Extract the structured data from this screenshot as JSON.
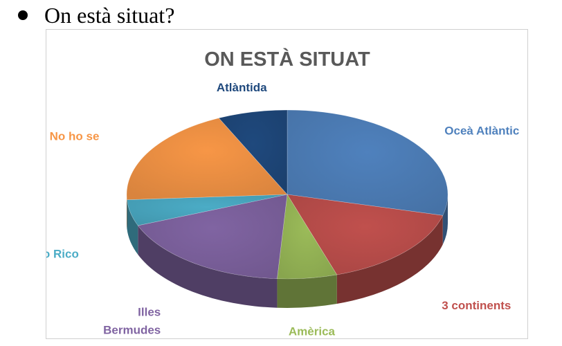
{
  "slide": {
    "bullet_text": "On està situat?"
  },
  "chart_data": {
    "type": "pie",
    "title": "ON ESTÀ SITUAT",
    "three_d": true,
    "legend": "none (labels beside slices)",
    "slices": [
      {
        "label": "Oceà Atlàntic",
        "value": 29,
        "color": "#4f81bd",
        "label_color": "#4f81bd"
      },
      {
        "label": "3 continents",
        "value": 16,
        "color": "#c0504d",
        "label_color": "#c0504d"
      },
      {
        "label": "Amèrica",
        "value": 6,
        "color": "#9bbb59",
        "label_color": "#9bbb59"
      },
      {
        "label": "Illes Bermudes",
        "label_lines": [
          "Illes",
          "Bermudes"
        ],
        "value": 18,
        "color": "#8064a2",
        "label_color": "#8064a2"
      },
      {
        "label": "Puerto Rico",
        "value": 5,
        "color": "#4bacc6",
        "label_color": "#4bacc6"
      },
      {
        "label": "No ho se",
        "value": 19,
        "color": "#f79646",
        "label_color": "#f79646"
      },
      {
        "label": "Atlàntida",
        "value": 7,
        "color": "#1f497d",
        "label_color": "#1f497d"
      }
    ]
  }
}
